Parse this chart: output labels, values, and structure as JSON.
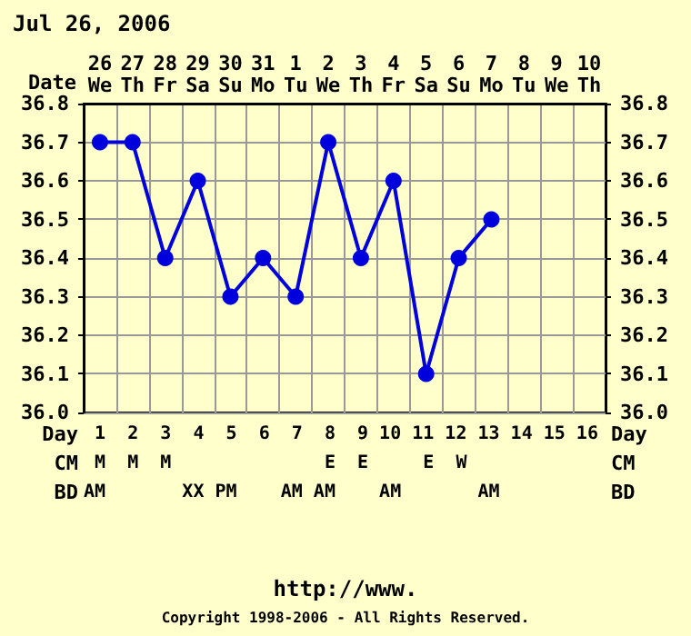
{
  "chart_data": {
    "type": "line",
    "title": "Jul 26, 2006",
    "xlabel": "Date",
    "categories": [
      "26\nWe",
      "27\nTh",
      "28\nFr",
      "29\nSa",
      "30\nSu",
      "31\nMo",
      "1\nTu",
      "2\nWe",
      "3\nTh",
      "4\nFr",
      "5\nSa",
      "6\nSu",
      "7\nMo",
      "8\nTu",
      "9\nWe",
      "10\nTh"
    ],
    "series": [
      {
        "color": "#0000dd",
        "values": [
          36.7,
          36.7,
          36.4,
          36.6,
          36.3,
          36.4,
          36.3,
          36.7,
          36.4,
          36.6,
          36.1,
          36.4,
          36.5,
          null,
          null,
          null
        ]
      }
    ],
    "ylim": [
      36.0,
      36.8
    ],
    "yticks": [
      {
        "value": 36.0,
        "label": "36.0"
      },
      {
        "value": 36.1,
        "label": "36.1"
      },
      {
        "value": 36.2,
        "label": "36.2"
      },
      {
        "value": 36.3,
        "label": "36.3"
      },
      {
        "value": 36.4,
        "label": "36.4"
      },
      {
        "value": 36.5,
        "label": "36.5"
      },
      {
        "value": 36.6,
        "label": "36.6"
      },
      {
        "value": 36.7,
        "label": "36.7"
      },
      {
        "value": 36.8,
        "label": "36.8"
      }
    ],
    "y2lim": [
      36.0,
      36.8
    ],
    "y2ticks": [
      {
        "value": 36.0,
        "label": "36.0"
      },
      {
        "value": 36.1,
        "label": "36.1"
      },
      {
        "value": 36.2,
        "label": "36.2"
      },
      {
        "value": 36.3,
        "label": "36.3"
      },
      {
        "value": 36.4,
        "label": "36.4"
      },
      {
        "value": 36.5,
        "label": "36.5"
      },
      {
        "value": 36.6,
        "label": "36.6"
      },
      {
        "value": 36.7,
        "label": "36.7"
      },
      {
        "value": 36.8,
        "label": "36.8"
      }
    ],
    "grid": true,
    "marker": "circle",
    "line_style": "solid",
    "annotations": [
      "Day",
      " 1  2  3  4  5  6  7  8  9 10 11 12 13 14 15 16",
      "CM",
      " M  M  M              E  E     E  W",
      "BD",
      "AM       XX PM    AM AM    AM       AM",
      "http://www.",
      "Copyright 1998-2006 - All Rights Reserved."
    ]
  }
}
